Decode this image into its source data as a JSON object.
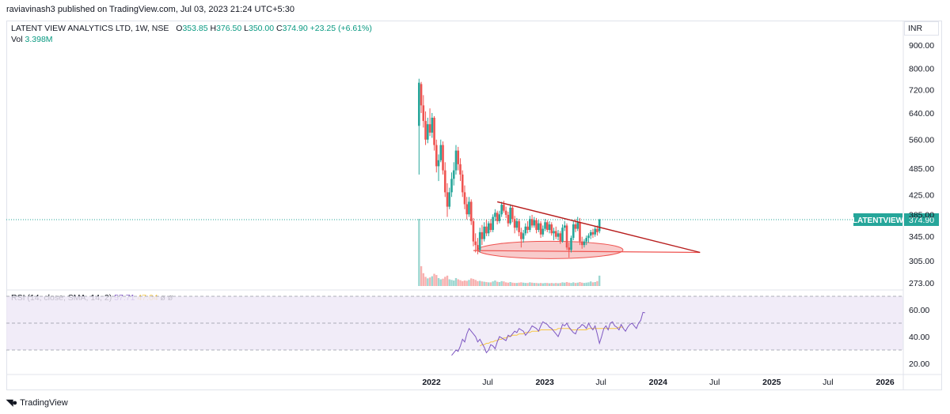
{
  "header": {
    "published_line": "raviavinash3 published on TradingView.com, Jul 03, 2023 21:24 UTC+5:30"
  },
  "legend": {
    "symbol": "LATENT VIEW ANALYTICS LTD, 1W, NSE",
    "o_label": "O",
    "o_value": "353.85",
    "h_label": "H",
    "h_value": "376.50",
    "l_label": "L",
    "l_value": "350.00",
    "c_label": "C",
    "c_value": "374.90",
    "change": "+23.25 (+6.61%)",
    "vol_label": "Vol",
    "vol_value": "3.398M"
  },
  "rsi_legend": {
    "label": "RSI (14, close, SMA, 14, 2)",
    "rsi_value": "57.71",
    "sma_value": "47.04",
    "extra1": "ø",
    "extra2": "ø"
  },
  "currency": "INR",
  "footer": {
    "brand": "TradingView"
  },
  "colors": {
    "up": "#26a69a",
    "down": "#ef5350",
    "rsi": "#7e57c2",
    "rsi_sma": "#f7c744",
    "trendline": "#b71c1c",
    "ellipse_fill": "#f5b5b5",
    "price_label_bg": "#26a69a"
  },
  "chart_data": [
    {
      "type": "candlestick",
      "title": "LATENT VIEW ANALYTICS LTD, 1W, NSE",
      "y_scale": "log",
      "price_ticks": [
        "900.00",
        "800.00",
        "720.00",
        "640.00",
        "560.00",
        "485.00",
        "425.00",
        "385.00",
        "345.00",
        "305.00",
        "273.00"
      ],
      "x_ticks": [
        "2022",
        "Jul",
        "2023",
        "Jul",
        "2024",
        "Jul",
        "2025",
        "Jul",
        "2026"
      ],
      "x_tick_dates": [
        "2022-01-01",
        "2022-07-01",
        "2023-01-01",
        "2023-07-01",
        "2024-01-01",
        "2024-07-01",
        "2025-01-01",
        "2025-07-01",
        "2026-01-01"
      ],
      "last_price_label": {
        "symbol": "LATENTVIEW",
        "value": "374.90"
      },
      "candles": [
        {
          "d": "2021-11-22",
          "o": 600,
          "h": 760,
          "l": 470,
          "c": 745
        },
        {
          "d": "2021-11-29",
          "o": 740,
          "h": 748,
          "l": 640,
          "c": 665
        },
        {
          "d": "2021-12-06",
          "o": 665,
          "h": 700,
          "l": 595,
          "c": 615
        },
        {
          "d": "2021-12-13",
          "o": 615,
          "h": 645,
          "l": 545,
          "c": 560
        },
        {
          "d": "2021-12-20",
          "o": 560,
          "h": 625,
          "l": 550,
          "c": 605
        },
        {
          "d": "2021-12-27",
          "o": 605,
          "h": 655,
          "l": 570,
          "c": 580
        },
        {
          "d": "2022-01-03",
          "o": 580,
          "h": 640,
          "l": 565,
          "c": 625
        },
        {
          "d": "2022-01-10",
          "o": 625,
          "h": 630,
          "l": 530,
          "c": 545
        },
        {
          "d": "2022-01-17",
          "o": 545,
          "h": 560,
          "l": 475,
          "c": 490
        },
        {
          "d": "2022-01-24",
          "o": 490,
          "h": 520,
          "l": 455,
          "c": 505
        },
        {
          "d": "2022-01-31",
          "o": 505,
          "h": 560,
          "l": 500,
          "c": 545
        },
        {
          "d": "2022-02-07",
          "o": 545,
          "h": 555,
          "l": 470,
          "c": 480
        },
        {
          "d": "2022-02-14",
          "o": 480,
          "h": 500,
          "l": 420,
          "c": 430
        },
        {
          "d": "2022-02-21",
          "o": 430,
          "h": 450,
          "l": 380,
          "c": 400
        },
        {
          "d": "2022-02-28",
          "o": 400,
          "h": 440,
          "l": 395,
          "c": 430
        },
        {
          "d": "2022-03-07",
          "o": 430,
          "h": 475,
          "l": 420,
          "c": 460
        },
        {
          "d": "2022-03-14",
          "o": 460,
          "h": 500,
          "l": 445,
          "c": 480
        },
        {
          "d": "2022-03-21",
          "o": 480,
          "h": 545,
          "l": 470,
          "c": 530
        },
        {
          "d": "2022-03-28",
          "o": 530,
          "h": 540,
          "l": 480,
          "c": 495
        },
        {
          "d": "2022-04-04",
          "o": 495,
          "h": 510,
          "l": 455,
          "c": 470
        },
        {
          "d": "2022-04-11",
          "o": 470,
          "h": 480,
          "l": 420,
          "c": 430
        },
        {
          "d": "2022-04-18",
          "o": 430,
          "h": 445,
          "l": 395,
          "c": 405
        },
        {
          "d": "2022-04-25",
          "o": 405,
          "h": 420,
          "l": 375,
          "c": 385
        },
        {
          "d": "2022-05-02",
          "o": 385,
          "h": 420,
          "l": 380,
          "c": 410
        },
        {
          "d": "2022-05-09",
          "o": 410,
          "h": 415,
          "l": 365,
          "c": 372
        },
        {
          "d": "2022-05-16",
          "o": 372,
          "h": 378,
          "l": 328,
          "c": 336
        },
        {
          "d": "2022-05-23",
          "o": 336,
          "h": 350,
          "l": 318,
          "c": 330
        },
        {
          "d": "2022-05-30",
          "o": 330,
          "h": 342,
          "l": 315,
          "c": 322
        },
        {
          "d": "2022-06-06",
          "o": 322,
          "h": 360,
          "l": 318,
          "c": 352
        },
        {
          "d": "2022-06-13",
          "o": 352,
          "h": 365,
          "l": 330,
          "c": 340
        },
        {
          "d": "2022-06-20",
          "o": 340,
          "h": 370,
          "l": 336,
          "c": 362
        },
        {
          "d": "2022-06-27",
          "o": 362,
          "h": 375,
          "l": 345,
          "c": 350
        },
        {
          "d": "2022-07-04",
          "o": 350,
          "h": 372,
          "l": 345,
          "c": 368
        },
        {
          "d": "2022-07-11",
          "o": 368,
          "h": 376,
          "l": 352,
          "c": 356
        },
        {
          "d": "2022-07-18",
          "o": 356,
          "h": 385,
          "l": 352,
          "c": 380
        },
        {
          "d": "2022-07-25",
          "o": 380,
          "h": 395,
          "l": 372,
          "c": 388
        },
        {
          "d": "2022-08-01",
          "o": 388,
          "h": 392,
          "l": 366,
          "c": 372
        },
        {
          "d": "2022-08-08",
          "o": 372,
          "h": 392,
          "l": 368,
          "c": 385
        },
        {
          "d": "2022-08-15",
          "o": 385,
          "h": 410,
          "l": 380,
          "c": 404
        },
        {
          "d": "2022-08-22",
          "o": 404,
          "h": 412,
          "l": 388,
          "c": 392
        },
        {
          "d": "2022-08-29",
          "o": 392,
          "h": 400,
          "l": 378,
          "c": 384
        },
        {
          "d": "2022-09-05",
          "o": 384,
          "h": 390,
          "l": 362,
          "c": 368
        },
        {
          "d": "2022-09-12",
          "o": 368,
          "h": 405,
          "l": 365,
          "c": 398
        },
        {
          "d": "2022-09-19",
          "o": 398,
          "h": 402,
          "l": 370,
          "c": 376
        },
        {
          "d": "2022-09-26",
          "o": 376,
          "h": 382,
          "l": 350,
          "c": 360
        },
        {
          "d": "2022-10-03",
          "o": 360,
          "h": 378,
          "l": 355,
          "c": 372
        },
        {
          "d": "2022-10-10",
          "o": 372,
          "h": 376,
          "l": 345,
          "c": 352
        },
        {
          "d": "2022-10-17",
          "o": 352,
          "h": 360,
          "l": 326,
          "c": 340
        },
        {
          "d": "2022-10-24",
          "o": 340,
          "h": 356,
          "l": 334,
          "c": 350
        },
        {
          "d": "2022-10-31",
          "o": 350,
          "h": 368,
          "l": 346,
          "c": 362
        },
        {
          "d": "2022-11-07",
          "o": 362,
          "h": 372,
          "l": 350,
          "c": 356
        },
        {
          "d": "2022-11-14",
          "o": 356,
          "h": 382,
          "l": 352,
          "c": 376
        },
        {
          "d": "2022-11-21",
          "o": 376,
          "h": 384,
          "l": 360,
          "c": 364
        },
        {
          "d": "2022-11-28",
          "o": 364,
          "h": 380,
          "l": 360,
          "c": 374
        },
        {
          "d": "2022-12-05",
          "o": 374,
          "h": 378,
          "l": 350,
          "c": 356
        },
        {
          "d": "2022-12-12",
          "o": 356,
          "h": 374,
          "l": 352,
          "c": 368
        },
        {
          "d": "2022-12-19",
          "o": 368,
          "h": 372,
          "l": 342,
          "c": 348
        },
        {
          "d": "2022-12-26",
          "o": 348,
          "h": 364,
          "l": 344,
          "c": 358
        },
        {
          "d": "2023-01-02",
          "o": 358,
          "h": 376,
          "l": 354,
          "c": 370
        },
        {
          "d": "2023-01-09",
          "o": 370,
          "h": 374,
          "l": 352,
          "c": 356
        },
        {
          "d": "2023-01-16",
          "o": 356,
          "h": 372,
          "l": 350,
          "c": 366
        },
        {
          "d": "2023-01-23",
          "o": 366,
          "h": 370,
          "l": 346,
          "c": 350
        },
        {
          "d": "2023-01-30",
          "o": 350,
          "h": 360,
          "l": 338,
          "c": 354
        },
        {
          "d": "2023-02-06",
          "o": 354,
          "h": 362,
          "l": 340,
          "c": 344
        },
        {
          "d": "2023-02-13",
          "o": 344,
          "h": 356,
          "l": 338,
          "c": 350
        },
        {
          "d": "2023-02-20",
          "o": 350,
          "h": 354,
          "l": 332,
          "c": 336
        },
        {
          "d": "2023-02-27",
          "o": 336,
          "h": 366,
          "l": 334,
          "c": 360
        },
        {
          "d": "2023-03-06",
          "o": 360,
          "h": 372,
          "l": 354,
          "c": 364
        },
        {
          "d": "2023-03-13",
          "o": 364,
          "h": 368,
          "l": 322,
          "c": 326
        },
        {
          "d": "2023-03-20",
          "o": 326,
          "h": 334,
          "l": 310,
          "c": 322
        },
        {
          "d": "2023-03-27",
          "o": 322,
          "h": 346,
          "l": 318,
          "c": 342
        },
        {
          "d": "2023-04-03",
          "o": 342,
          "h": 372,
          "l": 338,
          "c": 366
        },
        {
          "d": "2023-04-10",
          "o": 366,
          "h": 376,
          "l": 352,
          "c": 358
        },
        {
          "d": "2023-04-17",
          "o": 358,
          "h": 380,
          "l": 354,
          "c": 370
        },
        {
          "d": "2023-04-24",
          "o": 370,
          "h": 378,
          "l": 330,
          "c": 336
        },
        {
          "d": "2023-05-01",
          "o": 336,
          "h": 344,
          "l": 324,
          "c": 330
        },
        {
          "d": "2023-05-08",
          "o": 330,
          "h": 340,
          "l": 326,
          "c": 336
        },
        {
          "d": "2023-05-15",
          "o": 336,
          "h": 346,
          "l": 330,
          "c": 342
        },
        {
          "d": "2023-05-22",
          "o": 342,
          "h": 350,
          "l": 334,
          "c": 346
        },
        {
          "d": "2023-05-29",
          "o": 346,
          "h": 356,
          "l": 340,
          "c": 352
        },
        {
          "d": "2023-06-05",
          "o": 352,
          "h": 358,
          "l": 342,
          "c": 348
        },
        {
          "d": "2023-06-12",
          "o": 348,
          "h": 362,
          "l": 344,
          "c": 358
        },
        {
          "d": "2023-06-19",
          "o": 358,
          "h": 364,
          "l": 346,
          "c": 352
        },
        {
          "d": "2023-06-26",
          "o": 353.85,
          "h": 376.5,
          "l": 350,
          "c": 374.9
        }
      ],
      "annotations": {
        "descending_trendline": [
          {
            "d": "2022-08-01",
            "p": 410
          },
          {
            "d": "2024-05-15",
            "p": 318
          }
        ],
        "support_line": [
          {
            "d": "2022-05-16",
            "p": 321
          },
          {
            "d": "2024-05-15",
            "p": 318
          }
        ],
        "support_ellipse": {
          "d_from": "2022-05-30",
          "d_to": "2023-09-10",
          "p_center": 322
        }
      }
    },
    {
      "type": "bar",
      "title": "Vol",
      "series_name": "Vol",
      "unit": "millions",
      "values": [
        22,
        6.5,
        4.2,
        3.0,
        2.5,
        2.8,
        3.2,
        4.0,
        3.6,
        2.6,
        2.2,
        2.4,
        3.0,
        3.4,
        2.2,
        2.0,
        1.8,
        2.6,
        2.2,
        1.9,
        1.6,
        1.8,
        1.7,
        2.0,
        2.5,
        2.3,
        2.0,
        1.6,
        1.7,
        1.5,
        1.4,
        1.3,
        1.2,
        1.2,
        1.5,
        1.8,
        1.4,
        1.3,
        1.6,
        1.5,
        1.2,
        1.1,
        1.3,
        1.1,
        1.0,
        1.0,
        1.1,
        1.2,
        1.1,
        1.0,
        1.0,
        1.2,
        1.1,
        1.0,
        1.0,
        0.9,
        1.0,
        0.9,
        1.0,
        1.0,
        0.9,
        1.0,
        0.9,
        1.0,
        0.9,
        1.0,
        1.2,
        1.1,
        1.3,
        1.1,
        1.0,
        1.2,
        1.0,
        1.1,
        1.3,
        1.1,
        1.0,
        1.1,
        1.2,
        1.5,
        1.2,
        1.3,
        1.6,
        3.398
      ]
    },
    {
      "type": "line",
      "title": "RSI (14, close, SMA, 14, 2)",
      "y_ticks": [
        "60.00",
        "40.00",
        "20.00"
      ],
      "bands": [
        70,
        50,
        30
      ],
      "series": [
        {
          "name": "RSI",
          "start_date": "2022-03-07",
          "values": [
            26,
            28,
            30,
            29,
            33,
            38,
            36,
            42,
            46,
            44,
            42,
            40,
            36,
            38,
            35,
            32,
            28,
            30,
            34,
            33,
            31,
            36,
            40,
            39,
            38,
            37,
            41,
            40,
            42,
            44,
            43,
            46,
            45,
            44,
            41,
            43,
            45,
            48,
            47,
            46,
            44,
            48,
            51,
            50,
            49,
            47,
            46,
            44,
            42,
            40,
            44,
            49,
            48,
            50,
            47,
            45,
            43,
            42,
            46,
            47,
            49,
            48,
            46,
            50,
            47,
            45,
            48,
            42,
            35,
            40,
            46,
            48,
            45,
            50,
            51,
            48,
            47,
            45,
            49,
            46,
            44,
            47,
            49,
            50,
            48,
            46,
            50,
            52,
            58,
            57.71
          ]
        },
        {
          "name": "SMA",
          "start_date": "2022-06-06",
          "values": [
            33,
            34,
            34,
            35,
            35,
            36,
            36,
            37,
            37,
            38,
            38,
            39,
            39,
            40,
            40,
            41,
            41,
            41,
            42,
            42,
            42,
            43,
            43,
            43,
            44,
            44,
            44,
            44,
            45,
            45,
            45,
            45,
            45,
            45,
            45,
            45,
            46,
            46,
            46,
            46,
            46,
            46,
            45,
            45,
            45,
            45,
            45,
            45,
            45,
            45,
            46,
            46,
            46,
            46,
            46,
            46,
            46,
            46,
            46,
            46,
            46,
            46,
            46,
            46,
            47,
            47,
            47.04
          ]
        }
      ]
    }
  ]
}
